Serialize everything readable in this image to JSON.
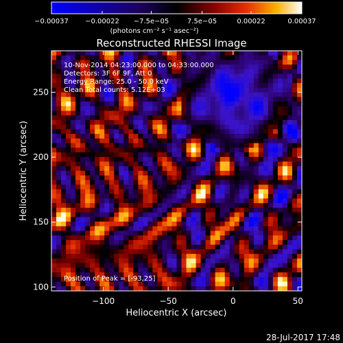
{
  "chart_data": {
    "type": "heatmap",
    "title": "Reconstructed RHESSI Image",
    "xlabel": "Heliocentric X (arcsec)",
    "ylabel": "Heliocentric Y (arcsec)",
    "xlim": [
      -140,
      53
    ],
    "ylim": [
      97,
      282
    ],
    "xticks": [
      -100,
      -50,
      0,
      50
    ],
    "xtick_labels": [
      "−100",
      "−50",
      "0",
      "50"
    ],
    "yticks": [
      100,
      150,
      200,
      250
    ],
    "ytick_labels": [
      "100",
      "150",
      "200",
      "250"
    ],
    "colorbar": {
      "min": -0.00037,
      "max": 0.00037,
      "ticks": [
        -0.00037,
        -0.00022,
        -7.5e-05,
        7.5e-05,
        0.00022,
        0.00037
      ],
      "tick_labels": [
        "−0.00037",
        "−0.00022",
        "−7.5e−05",
        "7.5e−05",
        "0.00022",
        "0.00037"
      ],
      "units": "(photons cm⁻² s⁻¹ asec⁻²)"
    },
    "annotations": {
      "time": "10-Nov-2014 04:23:00.000 to 04:33:00.000",
      "detectors": "Detectors: 3F 6F 9F, Att 0",
      "energy": "Energy Range: 25.0 - 50.0 keV",
      "clean": "Clean    Total counts: 5.12E+03",
      "peak": "Position of Peak = [-93,25]"
    },
    "peak_position": [
      -93,
      25
    ],
    "footer_date": "28-Jul-2017 17:48"
  }
}
